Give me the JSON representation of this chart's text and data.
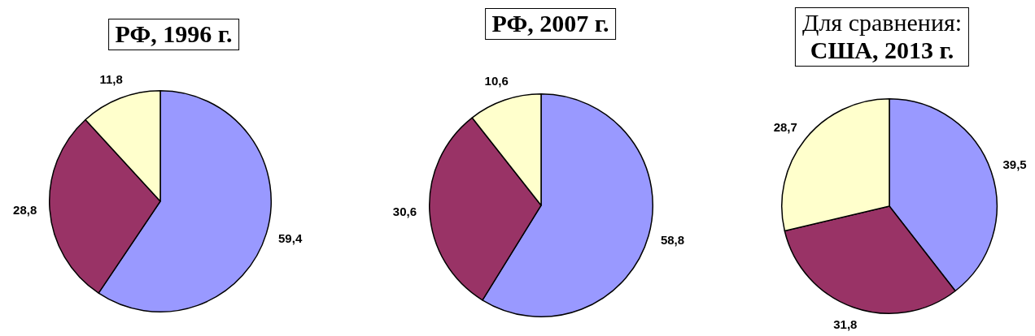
{
  "chart_data": [
    {
      "type": "pie",
      "title": "РФ, 1996 г.",
      "categories": [
        null,
        null,
        null
      ],
      "values": [
        59.4,
        28.8,
        11.8
      ],
      "colors": [
        "#9999ff",
        "#993366",
        "#ffffcc"
      ],
      "value_labels": [
        "59,4",
        "28,8",
        "11,8"
      ]
    },
    {
      "type": "pie",
      "title": "РФ, 2007 г.",
      "categories": [
        null,
        null,
        null
      ],
      "values": [
        58.8,
        30.6,
        10.6
      ],
      "colors": [
        "#9999ff",
        "#993366",
        "#ffffcc"
      ],
      "value_labels": [
        "58,8",
        "30,6",
        "10,6"
      ]
    },
    {
      "type": "pie",
      "title": "Для сравнения:",
      "subtitle": "США, 2013 г.",
      "categories": [
        null,
        null,
        null
      ],
      "values": [
        39.5,
        31.8,
        28.7
      ],
      "colors": [
        "#9999ff",
        "#993366",
        "#ffffcc"
      ],
      "value_labels": [
        "39,5",
        "31,8",
        "28,7"
      ]
    }
  ]
}
